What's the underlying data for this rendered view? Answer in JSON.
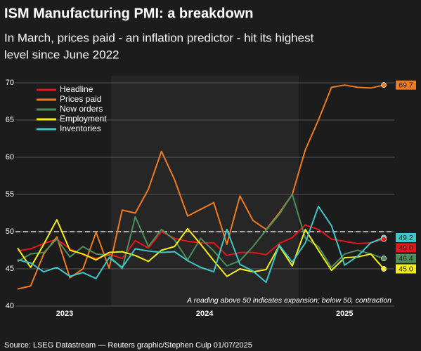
{
  "chart_data": {
    "type": "line",
    "title": "ISM Manufacturing PMI: a breakdown",
    "subtitle": [
      "In March, prices paid - an inflation predictor - hit its highest",
      "level since June 2022"
    ],
    "x": [
      0,
      1,
      2,
      3,
      4,
      5,
      6,
      7,
      8,
      9,
      10,
      11,
      12,
      13,
      14,
      15,
      16,
      17,
      18,
      19,
      20,
      21,
      22,
      23,
      24,
      25,
      26,
      27,
      28
    ],
    "xlim": [
      0,
      28.8
    ],
    "xticks": [
      {
        "value": 3.6,
        "label": "2023"
      },
      {
        "value": 14.3,
        "label": "2024"
      },
      {
        "value": 25,
        "label": "2025"
      }
    ],
    "ylim": [
      40,
      70
    ],
    "yticks": [
      40,
      45,
      50,
      55,
      60,
      65,
      70
    ],
    "grid": true,
    "reference_line": 50,
    "legend": "top-left",
    "annotation": "A reading above 50 indicates expansion; below 50, contraction",
    "source": "Source: LSEG Datastream — Reuters graphic/Stephen Culp 01/07/2025",
    "series": [
      {
        "name": "Headline",
        "color": "#e8141a",
        "values": [
          47.4,
          47.7,
          48.4,
          49,
          47.7,
          46.9,
          46.4,
          47,
          46.4,
          48.8,
          47.8,
          50,
          49.1,
          48.7,
          48.5,
          48.5,
          46.8,
          47.2,
          47.2,
          46.9,
          48.4,
          49.2,
          50.9,
          50.3,
          49.0,
          48.7,
          48.4,
          48.5,
          49.0
        ],
        "value_labels": [
          null,
          null,
          null,
          null,
          null,
          null,
          null,
          null,
          null,
          null,
          null,
          null,
          null,
          null,
          null,
          null,
          null,
          null,
          null,
          null,
          null,
          null,
          null,
          null,
          null,
          null,
          null,
          null,
          "49.0"
        ]
      },
      {
        "name": "Prices paid",
        "color": "#f07a1f",
        "values": [
          42.3,
          42.7,
          47,
          49.3,
          43.8,
          45,
          49.9,
          45.1,
          52.9,
          52.5,
          55.7,
          60.8,
          57,
          52.1,
          53,
          53.9,
          48.3,
          54.8,
          51.5,
          50.3,
          52.5,
          55,
          61,
          65,
          69.4,
          69.7,
          69.4,
          69.3,
          69.7
        ],
        "value_labels": [
          null,
          null,
          null,
          null,
          null,
          null,
          null,
          null,
          null,
          null,
          null,
          null,
          null,
          null,
          null,
          null,
          null,
          null,
          null,
          null,
          null,
          null,
          null,
          null,
          null,
          null,
          null,
          null,
          "69.7"
        ]
      },
      {
        "name": "New orders",
        "color": "#4c8f5a",
        "values": [
          46,
          47,
          47.2,
          49,
          46.6,
          48,
          47,
          46.8,
          45,
          52,
          48,
          50.3,
          48.9,
          46.2,
          49.1,
          47.4,
          45.4,
          46.1,
          48,
          50.2,
          52.3,
          55,
          49.1,
          48,
          45.2,
          47,
          47.5,
          47,
          46.4
        ],
        "value_labels": [
          null,
          null,
          null,
          null,
          null,
          null,
          null,
          null,
          null,
          null,
          null,
          null,
          null,
          null,
          null,
          null,
          null,
          null,
          null,
          null,
          null,
          null,
          null,
          null,
          null,
          null,
          null,
          null,
          "46.4"
        ]
      },
      {
        "name": "Employment",
        "color": "#f5f010",
        "values": [
          47.8,
          45.2,
          48.3,
          51.6,
          47.5,
          47,
          46.2,
          47.2,
          47.3,
          46.8,
          46,
          47.5,
          48,
          50.4,
          48.3,
          46.1,
          44,
          45,
          44.6,
          44.9,
          48.1,
          45.4,
          50.3,
          47.5,
          44.8,
          46.5,
          46.6,
          47,
          45.0
        ],
        "value_labels": [
          null,
          null,
          null,
          null,
          null,
          null,
          null,
          null,
          null,
          null,
          null,
          null,
          null,
          null,
          null,
          null,
          null,
          null,
          null,
          null,
          null,
          null,
          null,
          null,
          null,
          null,
          null,
          null,
          "45.0"
        ]
      },
      {
        "name": "Inventories",
        "color": "#3ec6c9",
        "values": [
          46.2,
          45.8,
          44.6,
          45.2,
          44,
          44.5,
          43.7,
          46.5,
          45.2,
          47.7,
          47.4,
          47.2,
          47.3,
          46.1,
          45.2,
          44.6,
          50.3,
          45.6,
          44.7,
          43.2,
          48.2,
          45.9,
          48.5,
          53.4,
          50.8,
          45.5,
          46.7,
          48.5,
          49.2
        ],
        "value_labels": [
          null,
          null,
          null,
          null,
          null,
          null,
          null,
          null,
          null,
          null,
          null,
          null,
          null,
          null,
          null,
          null,
          null,
          null,
          null,
          null,
          null,
          null,
          null,
          null,
          null,
          null,
          null,
          null,
          "49.2"
        ]
      }
    ]
  }
}
